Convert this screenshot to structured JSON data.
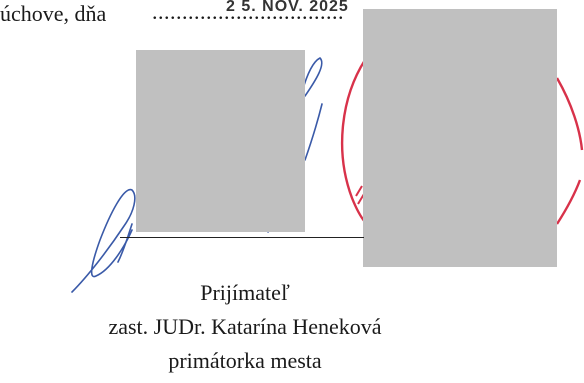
{
  "place_date": {
    "place_label": "úchove, dňa",
    "dots": "................................",
    "stamped_date": "2 5. NOV. 2025"
  },
  "signatory": {
    "role": "Prijímateľ",
    "representative": "zast. JUDr. Katarína Heneková",
    "position": "primátorka mesta"
  },
  "colors": {
    "signature_ink": "#3a5aa8",
    "seal_ink": "#d8324a",
    "redaction_fill": "#c0c0c0"
  }
}
